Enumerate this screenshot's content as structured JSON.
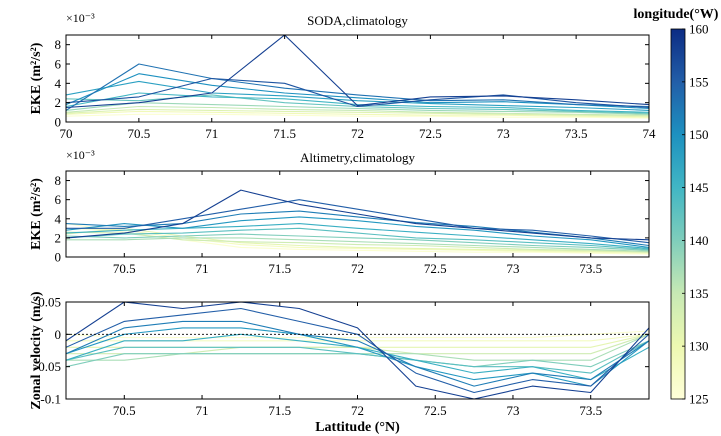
{
  "figure": {
    "colorbar": {
      "title": "longitude(°W)",
      "min": 125,
      "max": 160,
      "ticks": [
        160,
        155,
        150,
        145,
        140,
        135,
        130,
        125
      ],
      "colormap": [
        "#ffffd9",
        "#edf8b1",
        "#c7e9b4",
        "#7fcdbb",
        "#41b6c4",
        "#1d91c0",
        "#225ea8",
        "#0c2c84"
      ]
    },
    "xlabel": "Lattitude (°N)"
  },
  "chart_data": [
    {
      "type": "line",
      "title": "SODA,climatology",
      "ylabel": "EKE (m²/s²)",
      "y_multiplier": "×10⁻³",
      "xlim": [
        70,
        74
      ],
      "ylim": [
        0,
        9
      ],
      "xticks": [
        "70",
        "70.5",
        "71",
        "71.5",
        "72",
        "72.5",
        "73",
        "73.5",
        "74"
      ],
      "yticks": [
        "0",
        "2",
        "4",
        "6",
        "8"
      ],
      "x": [
        70,
        70.5,
        71,
        71.5,
        72,
        72.5,
        73,
        73.5,
        74
      ],
      "series": [
        {
          "lon": 158,
          "values": [
            1.5,
            2.0,
            3.0,
            9.0,
            1.7,
            2.6,
            2.7,
            2.3,
            1.8
          ]
        },
        {
          "lon": 156,
          "values": [
            2.0,
            2.6,
            4.5,
            4.0,
            1.6,
            2.3,
            2.8,
            2.0,
            1.5
          ]
        },
        {
          "lon": 153,
          "values": [
            1.2,
            6.0,
            4.5,
            3.5,
            2.8,
            2.2,
            2.3,
            1.8,
            1.6
          ]
        },
        {
          "lon": 150,
          "values": [
            1.8,
            5.0,
            3.8,
            3.0,
            2.5,
            2.0,
            2.1,
            1.8,
            1.4
          ]
        },
        {
          "lon": 148,
          "values": [
            2.8,
            4.2,
            3.0,
            2.7,
            2.2,
            1.9,
            1.7,
            1.5,
            1.2
          ]
        },
        {
          "lon": 145,
          "values": [
            1.6,
            3.0,
            2.6,
            2.4,
            1.8,
            1.6,
            1.5,
            1.2,
            1.0
          ]
        },
        {
          "lon": 142,
          "values": [
            2.4,
            2.2,
            2.8,
            2.0,
            1.6,
            1.4,
            1.3,
            1.1,
            0.9
          ]
        },
        {
          "lon": 138,
          "values": [
            1.2,
            2.0,
            1.8,
            1.6,
            1.4,
            1.2,
            1.1,
            1.0,
            0.8
          ]
        },
        {
          "lon": 135,
          "values": [
            1.0,
            1.6,
            1.5,
            1.3,
            1.2,
            1.0,
            0.9,
            0.8,
            0.7
          ]
        },
        {
          "lon": 132,
          "values": [
            0.9,
            1.3,
            1.2,
            1.1,
            1.0,
            0.9,
            0.8,
            0.7,
            0.6
          ]
        },
        {
          "lon": 129,
          "values": [
            0.8,
            1.1,
            1.0,
            0.9,
            0.8,
            0.7,
            0.7,
            0.6,
            0.5
          ]
        },
        {
          "lon": 126,
          "values": [
            0.6,
            0.8,
            0.8,
            0.7,
            0.6,
            0.6,
            0.5,
            0.5,
            0.4
          ]
        }
      ]
    },
    {
      "type": "line",
      "title": "Altimetry,climatology",
      "ylabel": "EKE (m²/s²)",
      "y_multiplier": "×10⁻³",
      "xlim": [
        70.125,
        73.875
      ],
      "ylim": [
        0,
        9
      ],
      "xticks": [
        "70.5",
        "71",
        "71.5",
        "72",
        "72.5",
        "73",
        "73.5"
      ],
      "xtick_values": [
        70.5,
        71,
        71.5,
        72,
        72.5,
        73,
        73.5
      ],
      "yticks": [
        "0",
        "2",
        "4",
        "6",
        "8"
      ],
      "x": [
        70.125,
        70.5,
        70.875,
        71.25,
        71.625,
        72.0,
        72.375,
        72.75,
        73.125,
        73.5,
        73.875
      ],
      "series": [
        {
          "lon": 158,
          "values": [
            2.0,
            2.5,
            3.5,
            7.0,
            5.5,
            4.5,
            3.5,
            3.0,
            2.5,
            2.0,
            1.8
          ]
        },
        {
          "lon": 155,
          "values": [
            3.0,
            3.0,
            4.0,
            5.0,
            6.0,
            5.0,
            4.0,
            3.0,
            2.8,
            2.2,
            1.5
          ]
        },
        {
          "lon": 152,
          "values": [
            3.5,
            3.2,
            3.5,
            4.5,
            4.8,
            4.2,
            3.6,
            3.2,
            2.6,
            2.0,
            1.2
          ]
        },
        {
          "lon": 149,
          "values": [
            2.8,
            3.5,
            3.0,
            3.8,
            4.2,
            3.8,
            3.2,
            2.8,
            2.2,
            1.8,
            1.0
          ]
        },
        {
          "lon": 146,
          "values": [
            2.5,
            2.8,
            3.0,
            3.2,
            3.5,
            3.0,
            2.6,
            2.2,
            1.8,
            1.4,
            0.9
          ]
        },
        {
          "lon": 143,
          "values": [
            2.0,
            2.4,
            2.5,
            2.8,
            3.0,
            2.5,
            2.0,
            1.8,
            1.5,
            1.2,
            0.8
          ]
        },
        {
          "lon": 140,
          "values": [
            2.2,
            2.0,
            2.2,
            2.4,
            2.2,
            2.0,
            1.8,
            1.5,
            1.2,
            1.0,
            0.7
          ]
        },
        {
          "lon": 137,
          "values": [
            1.8,
            1.8,
            2.0,
            2.0,
            1.8,
            1.6,
            1.4,
            1.2,
            1.0,
            0.8,
            0.6
          ]
        },
        {
          "lon": 134,
          "values": [
            2.6,
            2.5,
            1.8,
            1.6,
            1.5,
            1.3,
            1.2,
            1.0,
            0.8,
            0.7,
            0.5
          ]
        },
        {
          "lon": 131,
          "values": [
            2.4,
            3.0,
            2.2,
            1.5,
            1.2,
            1.0,
            0.9,
            0.8,
            0.7,
            0.6,
            0.5
          ]
        },
        {
          "lon": 128,
          "values": [
            3.0,
            2.8,
            2.0,
            1.3,
            1.0,
            0.9,
            0.8,
            0.7,
            0.6,
            0.5,
            0.4
          ]
        },
        {
          "lon": 126,
          "values": [
            3.5,
            2.6,
            1.8,
            1.0,
            0.8,
            0.7,
            0.6,
            0.5,
            0.5,
            0.4,
            0.3
          ]
        }
      ]
    },
    {
      "type": "line",
      "title": "",
      "ylabel": "Zonal velocity (m/s)",
      "xlabel": "Lattitude (°N)",
      "xlim": [
        70.125,
        73.875
      ],
      "ylim": [
        -0.1,
        0.05
      ],
      "zero_line": "dashed",
      "xticks": [
        "70.5",
        "71",
        "71.5",
        "72",
        "72.5",
        "73",
        "73.5"
      ],
      "xtick_values": [
        70.5,
        71,
        71.5,
        72,
        72.5,
        73,
        73.5
      ],
      "yticks": [
        "0.05",
        "0",
        "-0.05",
        "-0.1"
      ],
      "ytick_values": [
        0.05,
        0,
        -0.05,
        -0.1
      ],
      "x": [
        70.125,
        70.5,
        70.875,
        71.25,
        71.625,
        72.0,
        72.375,
        72.75,
        73.125,
        73.5,
        73.875
      ],
      "series": [
        {
          "lon": 158,
          "values": [
            -0.01,
            0.05,
            0.04,
            0.05,
            0.04,
            0.01,
            -0.08,
            -0.1,
            -0.08,
            -0.09,
            0.01
          ]
        },
        {
          "lon": 155,
          "values": [
            -0.02,
            0.02,
            0.03,
            0.04,
            0.02,
            0.0,
            -0.06,
            -0.09,
            -0.07,
            -0.08,
            0.0
          ]
        },
        {
          "lon": 152,
          "values": [
            -0.03,
            0.01,
            0.02,
            0.02,
            0.0,
            -0.01,
            -0.05,
            -0.08,
            -0.06,
            -0.07,
            -0.01
          ]
        },
        {
          "lon": 149,
          "values": [
            -0.03,
            0.0,
            0.01,
            0.01,
            0.0,
            -0.02,
            -0.05,
            -0.07,
            -0.06,
            -0.08,
            -0.01
          ]
        },
        {
          "lon": 146,
          "values": [
            -0.04,
            -0.01,
            -0.01,
            0.0,
            -0.01,
            -0.02,
            -0.04,
            -0.06,
            -0.05,
            -0.07,
            -0.02
          ]
        },
        {
          "lon": 143,
          "values": [
            -0.04,
            -0.02,
            -0.02,
            -0.02,
            -0.02,
            -0.03,
            -0.04,
            -0.05,
            -0.05,
            -0.06,
            -0.01
          ]
        },
        {
          "lon": 140,
          "values": [
            -0.05,
            -0.03,
            -0.03,
            -0.03,
            -0.03,
            -0.03,
            -0.04,
            -0.05,
            -0.04,
            -0.05,
            -0.01
          ]
        },
        {
          "lon": 137,
          "values": [
            -0.04,
            -0.04,
            -0.03,
            -0.03,
            -0.03,
            -0.03,
            -0.03,
            -0.04,
            -0.04,
            -0.04,
            0.0
          ]
        },
        {
          "lon": 134,
          "values": [
            -0.03,
            -0.03,
            -0.03,
            -0.02,
            -0.02,
            -0.02,
            -0.03,
            -0.03,
            -0.03,
            -0.03,
            0.0
          ]
        },
        {
          "lon": 131,
          "values": [
            -0.02,
            -0.02,
            -0.02,
            -0.02,
            -0.02,
            -0.02,
            -0.02,
            -0.02,
            -0.02,
            -0.02,
            0.0
          ]
        },
        {
          "lon": 128,
          "values": [
            -0.01,
            -0.01,
            -0.01,
            -0.01,
            -0.01,
            -0.01,
            -0.01,
            -0.01,
            -0.01,
            -0.01,
            0.0
          ]
        },
        {
          "lon": 126,
          "values": [
            0.0,
            -0.005,
            -0.005,
            -0.005,
            -0.005,
            -0.005,
            -0.005,
            -0.005,
            -0.005,
            0.0,
            0.005
          ]
        }
      ]
    }
  ]
}
